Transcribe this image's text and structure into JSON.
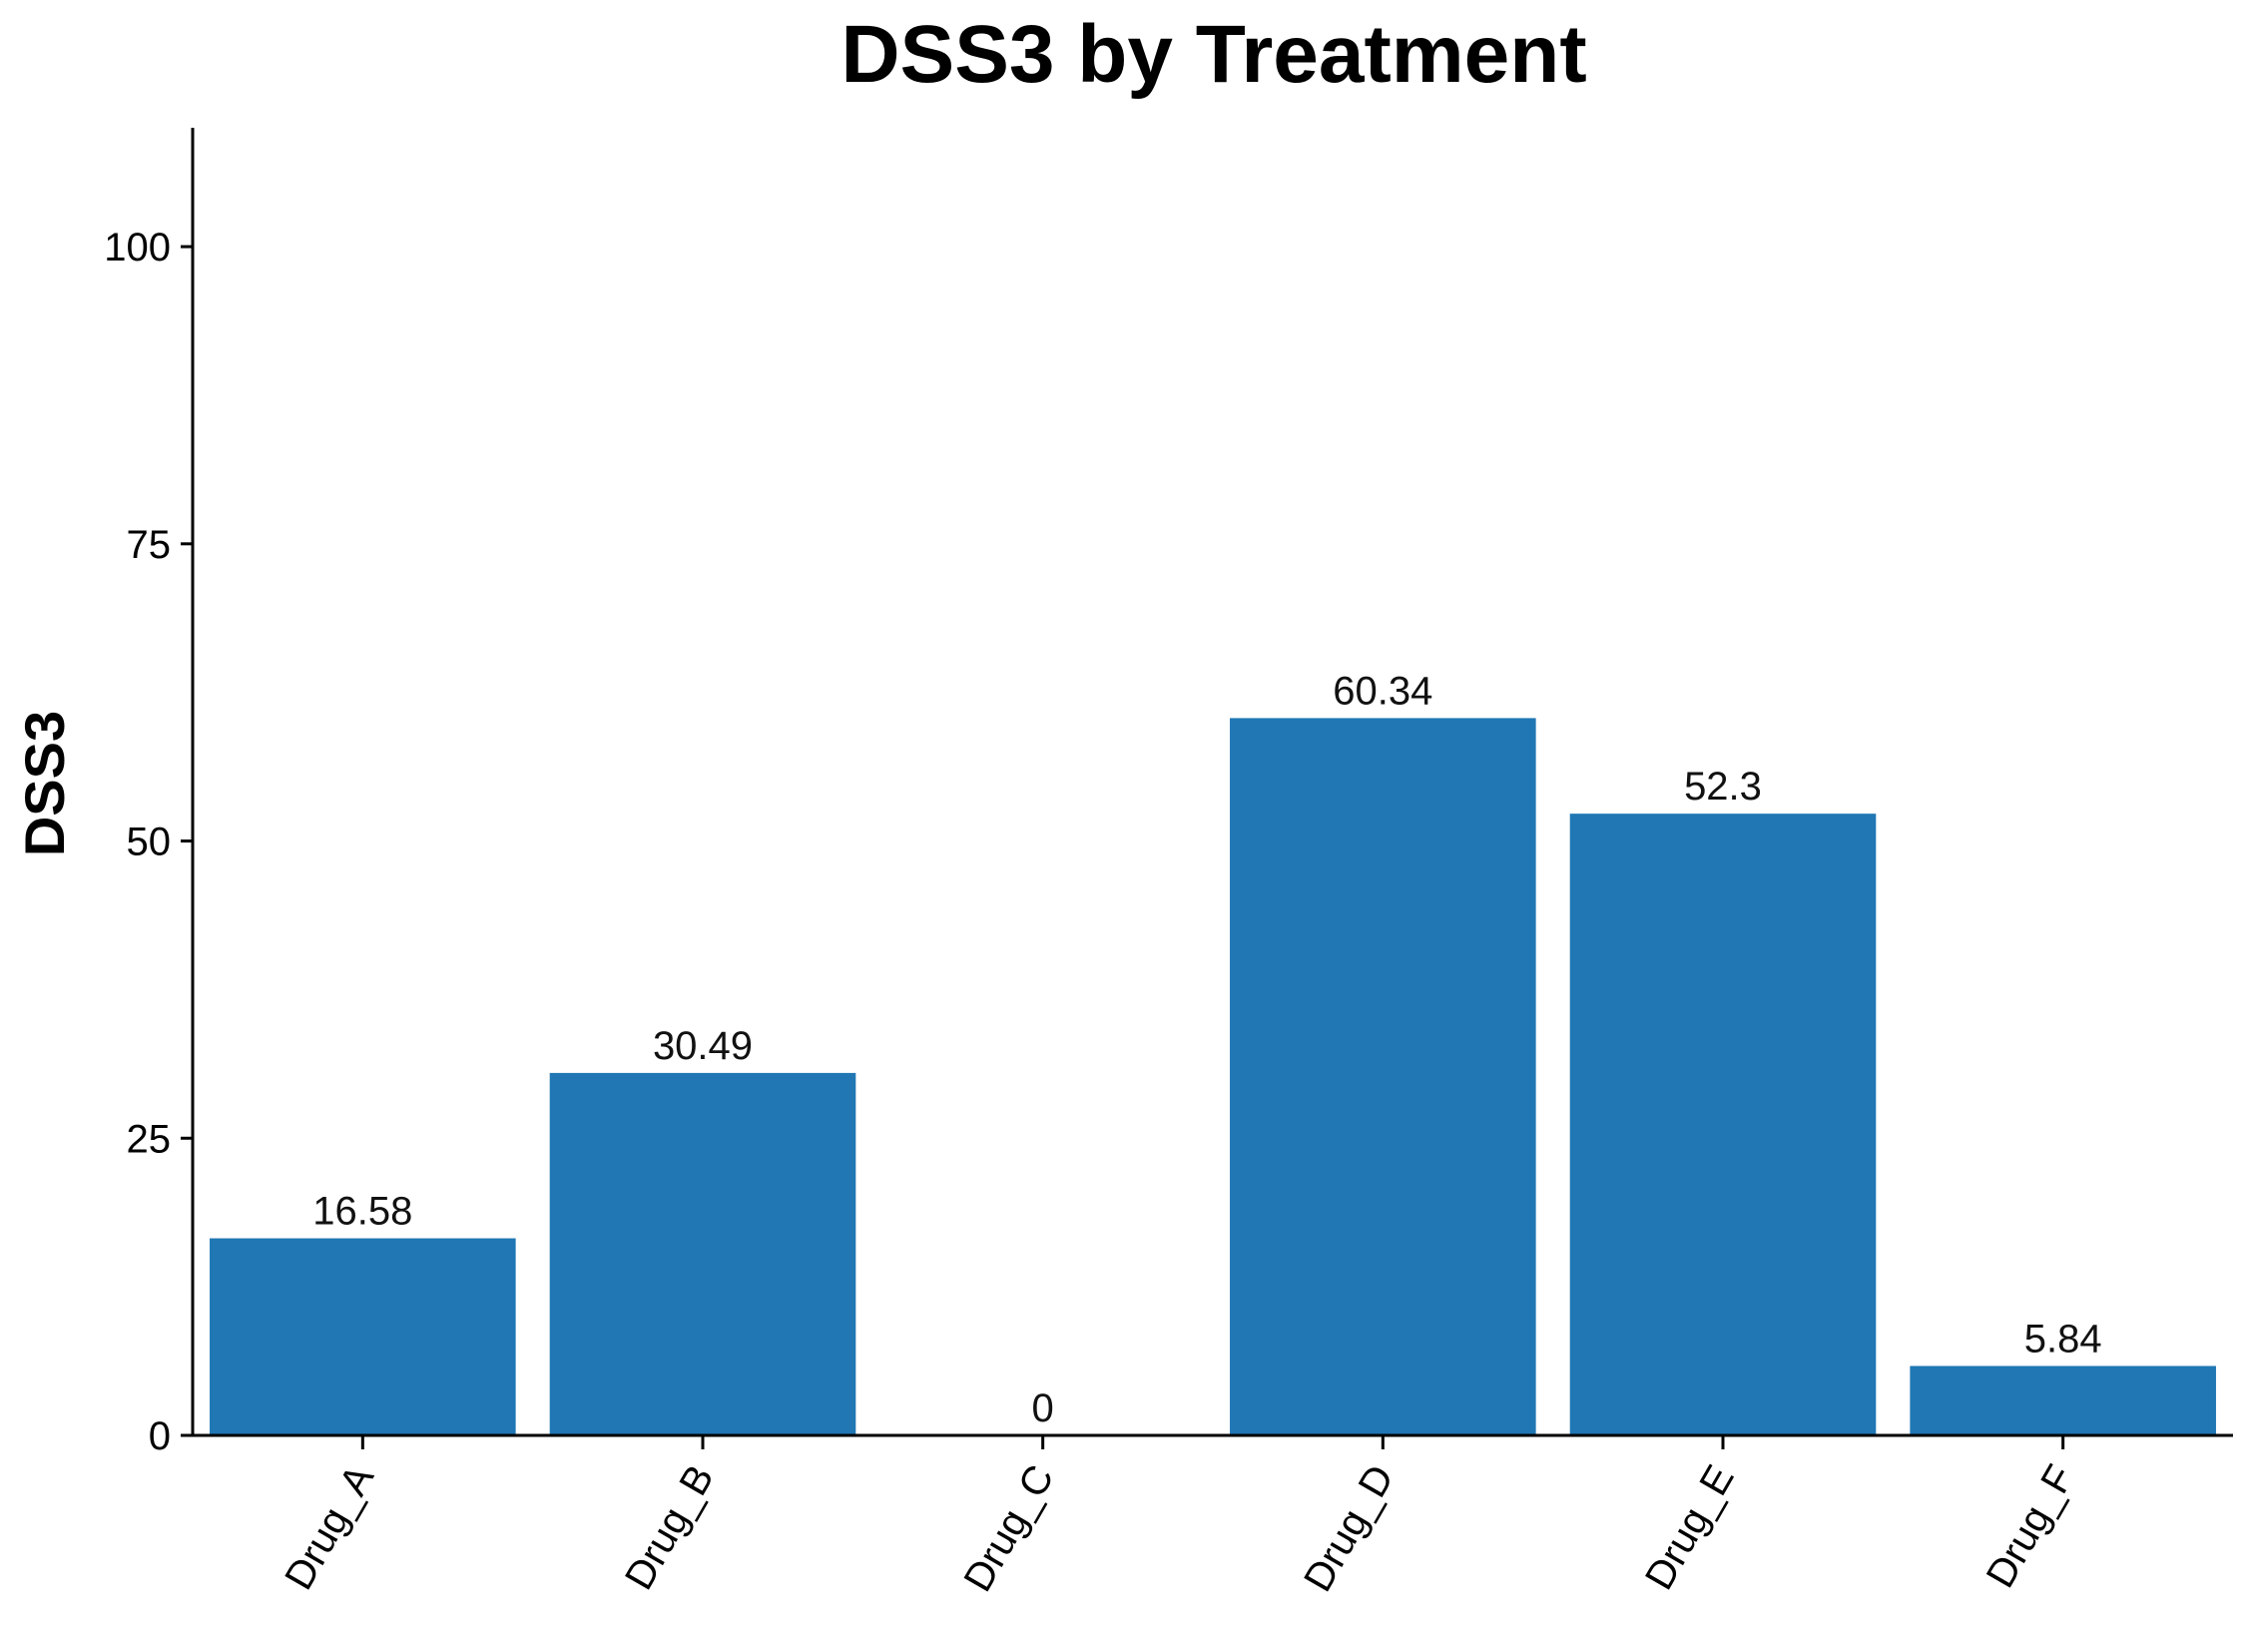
{
  "chart_data": {
    "type": "bar",
    "title": "DSS3 by Treatment",
    "xlabel": "",
    "ylabel": "DSS3",
    "categories": [
      "Drug_A",
      "Drug_B",
      "Drug_C",
      "Drug_D",
      "Drug_E",
      "Drug_F"
    ],
    "values": [
      16.58,
      30.49,
      0,
      60.34,
      52.3,
      5.84
    ],
    "data_labels": [
      "16.58",
      "30.49",
      "0",
      "60.34",
      "52.3",
      "5.84"
    ],
    "ylim": [
      0,
      110
    ],
    "yticks": [
      0,
      25,
      50,
      75,
      100
    ],
    "ytick_labels": [
      "0",
      "25",
      "50",
      "75",
      "100"
    ],
    "bar_color": "#2077b4",
    "grid": false,
    "legend": "none"
  }
}
